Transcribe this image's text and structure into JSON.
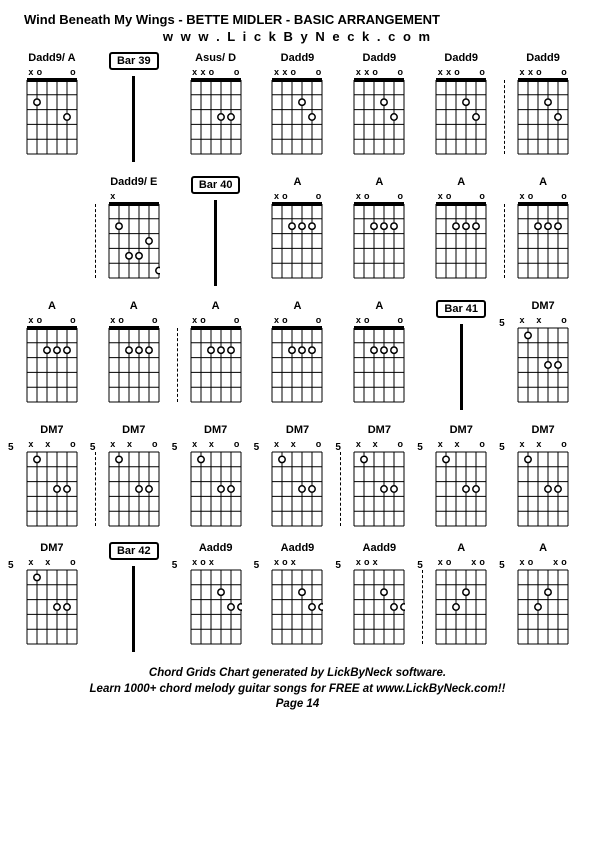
{
  "title": "Wind Beneath My Wings - BETTE MIDLER - BASIC ARRANGEMENT",
  "subtitle": "w w w . L i c k B y N e c k . c o m",
  "footer_line1": "Chord Grids Chart generated by LickByNeck software.",
  "footer_line2": "Learn 1000+ chord melody guitar songs for FREE at www.LickByNeck.com!!",
  "footer_line3": "Page 14",
  "colors": {
    "bg": "#ffffff",
    "fg": "#000000"
  },
  "fretboard": {
    "strings": 6,
    "frets": 5,
    "width": 50,
    "height": 74,
    "open_mark": "o",
    "mute_mark": "x",
    "dot_radius": 3.2
  },
  "cells": [
    {
      "type": "chord",
      "label": "Dadd9/ A",
      "nut": true,
      "top": [
        "x",
        "o",
        "",
        "",
        "",
        "o"
      ],
      "dots": [
        [
          2,
          2
        ],
        [
          5,
          3
        ]
      ]
    },
    {
      "type": "bar",
      "label": "Bar 39"
    },
    {
      "type": "chord",
      "label": "Asus/ D",
      "nut": true,
      "top": [
        "x",
        "x",
        "o",
        "",
        "",
        "o"
      ],
      "dots": [
        [
          4,
          3
        ],
        [
          5,
          3
        ]
      ]
    },
    {
      "type": "chord",
      "label": "Dadd9",
      "nut": true,
      "top": [
        "x",
        "x",
        "o",
        "",
        "",
        "o"
      ],
      "dots": [
        [
          4,
          2
        ],
        [
          5,
          3
        ]
      ]
    },
    {
      "type": "chord",
      "label": "Dadd9",
      "nut": true,
      "top": [
        "x",
        "x",
        "o",
        "",
        "",
        "o"
      ],
      "dots": [
        [
          4,
          2
        ],
        [
          5,
          3
        ]
      ]
    },
    {
      "type": "chord",
      "label": "Dadd9",
      "nut": true,
      "top": [
        "x",
        "x",
        "o",
        "",
        "",
        "o"
      ],
      "dots": [
        [
          4,
          2
        ],
        [
          5,
          3
        ]
      ],
      "dashed_after": true
    },
    {
      "type": "chord",
      "label": "Dadd9",
      "nut": true,
      "top": [
        "x",
        "x",
        "o",
        "",
        "",
        "o"
      ],
      "dots": [
        [
          4,
          2
        ],
        [
          5,
          3
        ]
      ]
    },
    {
      "type": "empty",
      "dashed_after": true
    },
    {
      "type": "chord",
      "label": "Dadd9/ E",
      "nut": true,
      "top": [
        "x",
        "",
        "",
        "",
        "",
        ""
      ],
      "dots": [
        [
          2,
          2
        ],
        [
          3,
          4
        ],
        [
          4,
          4
        ],
        [
          5,
          3
        ],
        [
          6,
          5
        ]
      ]
    },
    {
      "type": "bar",
      "label": "Bar 40"
    },
    {
      "type": "chord",
      "label": "A",
      "nut": true,
      "top": [
        "x",
        "o",
        "",
        "",
        "",
        "o"
      ],
      "dots": [
        [
          3,
          2
        ],
        [
          4,
          2
        ],
        [
          5,
          2
        ]
      ]
    },
    {
      "type": "chord",
      "label": "A",
      "nut": true,
      "top": [
        "x",
        "o",
        "",
        "",
        "",
        "o"
      ],
      "dots": [
        [
          3,
          2
        ],
        [
          4,
          2
        ],
        [
          5,
          2
        ]
      ]
    },
    {
      "type": "chord",
      "label": "A",
      "nut": true,
      "top": [
        "x",
        "o",
        "",
        "",
        "",
        "o"
      ],
      "dots": [
        [
          3,
          2
        ],
        [
          4,
          2
        ],
        [
          5,
          2
        ]
      ],
      "dashed_after": true
    },
    {
      "type": "chord",
      "label": "A",
      "nut": true,
      "top": [
        "x",
        "o",
        "",
        "",
        "",
        "o"
      ],
      "dots": [
        [
          3,
          2
        ],
        [
          4,
          2
        ],
        [
          5,
          2
        ]
      ]
    },
    {
      "type": "chord",
      "label": "A",
      "nut": true,
      "top": [
        "x",
        "o",
        "",
        "",
        "",
        "o"
      ],
      "dots": [
        [
          3,
          2
        ],
        [
          4,
          2
        ],
        [
          5,
          2
        ]
      ]
    },
    {
      "type": "chord",
      "label": "A",
      "nut": true,
      "top": [
        "x",
        "o",
        "",
        "",
        "",
        "o"
      ],
      "dots": [
        [
          3,
          2
        ],
        [
          4,
          2
        ],
        [
          5,
          2
        ]
      ],
      "dashed_after": true
    },
    {
      "type": "chord",
      "label": "A",
      "nut": true,
      "top": [
        "x",
        "o",
        "",
        "",
        "",
        "o"
      ],
      "dots": [
        [
          3,
          2
        ],
        [
          4,
          2
        ],
        [
          5,
          2
        ]
      ]
    },
    {
      "type": "chord",
      "label": "A",
      "nut": true,
      "top": [
        "x",
        "o",
        "",
        "",
        "",
        "o"
      ],
      "dots": [
        [
          3,
          2
        ],
        [
          4,
          2
        ],
        [
          5,
          2
        ]
      ]
    },
    {
      "type": "chord",
      "label": "A",
      "nut": true,
      "top": [
        "x",
        "o",
        "",
        "",
        "",
        "o"
      ],
      "dots": [
        [
          3,
          2
        ],
        [
          4,
          2
        ],
        [
          5,
          2
        ]
      ]
    },
    {
      "type": "bar",
      "label": "Bar 41"
    },
    {
      "type": "chord",
      "label": "DM7",
      "nut": false,
      "fret": "5",
      "top": [
        "x",
        "",
        "x",
        "",
        "",
        "o"
      ],
      "dots": [
        [
          2,
          1
        ],
        [
          4,
          3
        ],
        [
          5,
          3
        ]
      ]
    },
    {
      "type": "chord",
      "label": "DM7",
      "nut": false,
      "fret": "5",
      "top": [
        "x",
        "",
        "x",
        "",
        "",
        "o"
      ],
      "dots": [
        [
          2,
          1
        ],
        [
          4,
          3
        ],
        [
          5,
          3
        ]
      ],
      "dashed_after": true
    },
    {
      "type": "chord",
      "label": "DM7",
      "nut": false,
      "fret": "5",
      "top": [
        "x",
        "",
        "x",
        "",
        "",
        "o"
      ],
      "dots": [
        [
          2,
          1
        ],
        [
          4,
          3
        ],
        [
          5,
          3
        ]
      ]
    },
    {
      "type": "chord",
      "label": "DM7",
      "nut": false,
      "fret": "5",
      "top": [
        "x",
        "",
        "x",
        "",
        "",
        "o"
      ],
      "dots": [
        [
          2,
          1
        ],
        [
          4,
          3
        ],
        [
          5,
          3
        ]
      ]
    },
    {
      "type": "chord",
      "label": "DM7",
      "nut": false,
      "fret": "5",
      "top": [
        "x",
        "",
        "x",
        "",
        "",
        "o"
      ],
      "dots": [
        [
          2,
          1
        ],
        [
          4,
          3
        ],
        [
          5,
          3
        ]
      ],
      "dashed_after": true
    },
    {
      "type": "chord",
      "label": "DM7",
      "nut": false,
      "fret": "5",
      "top": [
        "x",
        "",
        "x",
        "",
        "",
        "o"
      ],
      "dots": [
        [
          2,
          1
        ],
        [
          4,
          3
        ],
        [
          5,
          3
        ]
      ]
    },
    {
      "type": "chord",
      "label": "DM7",
      "nut": false,
      "fret": "5",
      "top": [
        "x",
        "",
        "x",
        "",
        "",
        "o"
      ],
      "dots": [
        [
          2,
          1
        ],
        [
          4,
          3
        ],
        [
          5,
          3
        ]
      ]
    },
    {
      "type": "chord",
      "label": "DM7",
      "nut": false,
      "fret": "5",
      "top": [
        "x",
        "",
        "x",
        "",
        "",
        "o"
      ],
      "dots": [
        [
          2,
          1
        ],
        [
          4,
          3
        ],
        [
          5,
          3
        ]
      ]
    },
    {
      "type": "chord",
      "label": "DM7",
      "nut": false,
      "fret": "5",
      "top": [
        "x",
        "",
        "x",
        "",
        "",
        "o"
      ],
      "dots": [
        [
          2,
          1
        ],
        [
          4,
          3
        ],
        [
          5,
          3
        ]
      ]
    },
    {
      "type": "bar",
      "label": "Bar 42"
    },
    {
      "type": "chord",
      "label": "Aadd9",
      "nut": false,
      "fret": "5",
      "top": [
        "x",
        "o",
        "x",
        "",
        "",
        ""
      ],
      "dots": [
        [
          4,
          2
        ],
        [
          5,
          3
        ],
        [
          6,
          3
        ]
      ]
    },
    {
      "type": "chord",
      "label": "Aadd9",
      "nut": false,
      "fret": "5",
      "top": [
        "x",
        "o",
        "x",
        "",
        "",
        ""
      ],
      "dots": [
        [
          4,
          2
        ],
        [
          5,
          3
        ],
        [
          6,
          3
        ]
      ]
    },
    {
      "type": "chord",
      "label": "Aadd9",
      "nut": false,
      "fret": "5",
      "top": [
        "x",
        "o",
        "x",
        "",
        "",
        ""
      ],
      "dots": [
        [
          4,
          2
        ],
        [
          5,
          3
        ],
        [
          6,
          3
        ]
      ],
      "dashed_after": true
    },
    {
      "type": "chord",
      "label": "A",
      "nut": false,
      "fret": "5",
      "top": [
        "x",
        "o",
        "",
        "",
        "x",
        "o"
      ],
      "dots": [
        [
          3,
          3
        ],
        [
          4,
          2
        ]
      ]
    },
    {
      "type": "chord",
      "label": "A",
      "nut": false,
      "fret": "5",
      "top": [
        "x",
        "o",
        "",
        "",
        "x",
        "o"
      ],
      "dots": [
        [
          3,
          3
        ],
        [
          4,
          2
        ]
      ]
    }
  ]
}
